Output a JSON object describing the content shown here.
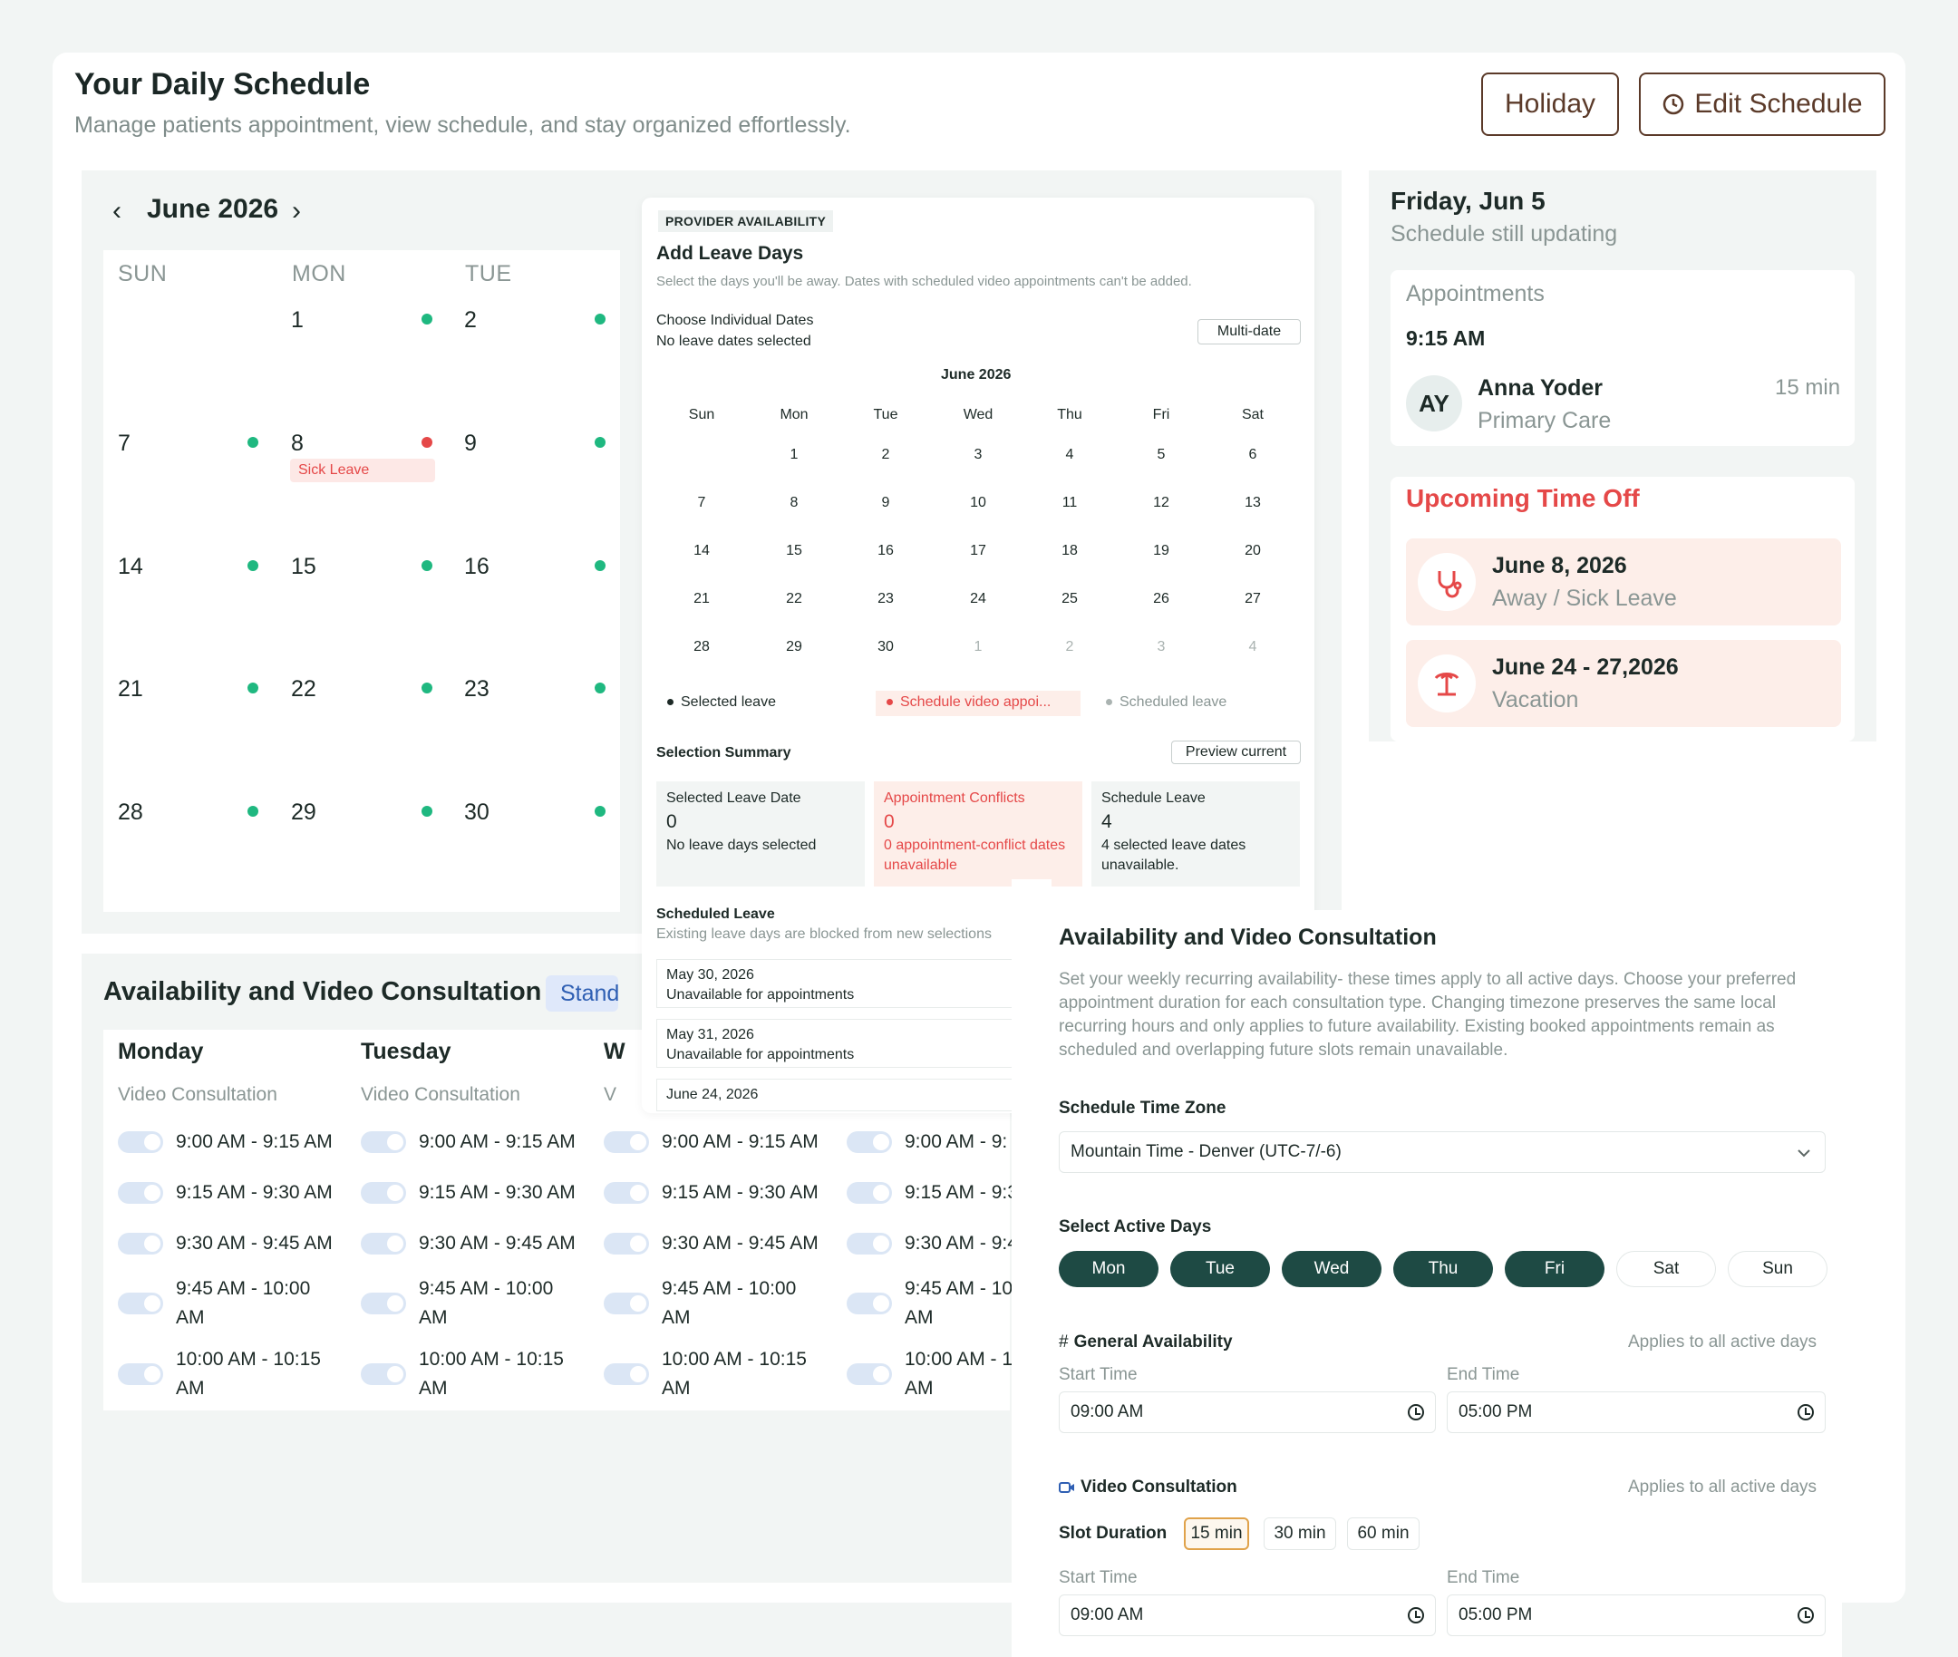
{
  "header": {
    "title": "Your Daily Schedule",
    "subtitle": "Manage patients appointment, view schedule, and stay organized effortlessly.",
    "holiday_label": "Holiday",
    "edit_label": "Edit Schedule"
  },
  "calendar": {
    "month": "June 2026",
    "weekdays": [
      "SUN",
      "MON",
      "TUE"
    ],
    "days": [
      "1",
      "2",
      "7",
      "8",
      "9",
      "14",
      "15",
      "16",
      "21",
      "22",
      "23",
      "28",
      "29",
      "30"
    ],
    "sick_leave_label": "Sick Leave"
  },
  "availability_bg": {
    "title": "Availability and Video Consultation",
    "badge": "Stand",
    "days": [
      "Monday",
      "Tuesday",
      "W"
    ],
    "type_label": "Video Consultation",
    "type_partial": "V",
    "slots": [
      "9:00 AM - 9:15 AM",
      "9:15 AM - 9:30 AM",
      "9:30 AM - 9:45 AM",
      "9:45 AM - 10:00",
      "AM",
      "10:00 AM - 10:15",
      "AM"
    ],
    "slots_partial": [
      "9:00 AM - 9:",
      "9:15 AM - 9:3",
      "9:30 AM - 9:4",
      "9:45 AM - 10:",
      "AM",
      "10:00 AM - 10",
      "AM"
    ]
  },
  "leave": {
    "tag": "PROVIDER AVAILABILITY",
    "title": "Add Leave Days",
    "desc": "Select the days you'll be away. Dates with scheduled video appointments can't be added.",
    "choose_label": "Choose Individual Dates",
    "choose_sub": "No leave dates selected",
    "multi_label": "Multi-date",
    "month": "June 2026",
    "weekdays": [
      "Sun",
      "Mon",
      "Tue",
      "Wed",
      "Thu",
      "Fri",
      "Sat"
    ],
    "weeks": [
      [
        "",
        "1",
        "2",
        "3",
        "4",
        "5",
        "6"
      ],
      [
        "7",
        "8",
        "9",
        "10",
        "11",
        "12",
        "13"
      ],
      [
        "14",
        "15",
        "16",
        "17",
        "18",
        "19",
        "20"
      ],
      [
        "21",
        "22",
        "23",
        "24",
        "25",
        "26",
        "27"
      ],
      [
        "28",
        "29",
        "30",
        "1",
        "2",
        "3",
        "4"
      ]
    ],
    "legend": [
      "Selected leave",
      "Schedule video appoi...",
      "Scheduled leave"
    ],
    "summary_label": "Selection Summary",
    "preview_label": "Preview current",
    "boxes": [
      {
        "title": "Selected Leave Date",
        "value": "0",
        "sub": "No leave days selected"
      },
      {
        "title": "Appointment Conflicts",
        "value": "0",
        "sub": "0 appointment-conflict dates unavailable"
      },
      {
        "title": "Schedule Leave",
        "value": "4",
        "sub": "4 selected leave dates unavailable."
      }
    ],
    "scheduled_title": "Scheduled Leave",
    "scheduled_desc": "Existing leave days are blocked from new selections",
    "items": [
      {
        "date": "May 30, 2026",
        "sub": "Unavailable for appointments"
      },
      {
        "date": "May 31, 2026",
        "sub": "Unavailable for appointments"
      },
      {
        "date": "June 24, 2026",
        "sub": ""
      }
    ]
  },
  "day_panel": {
    "date": "Friday, Jun 5",
    "status": "Schedule still updating",
    "appt_title": "Appointments",
    "time": "9:15 AM",
    "initials": "AY",
    "patient": "Anna Yoder",
    "dept": "Primary Care",
    "duration": "15 min",
    "timeoff_title": "Upcoming Time Off",
    "timeoff": [
      {
        "date": "June 8, 2026",
        "type": "Away / Sick Leave"
      },
      {
        "date": "June 24 - 27,2026",
        "type": "Vacation"
      }
    ]
  },
  "avail_modal": {
    "title": "Availability and Video Consultation",
    "desc": "Set your weekly recurring availability- these times apply to all active days. Choose your preferred appointment duration for each consultation type. Changing timezone preserves the same local recurring hours and only applies to future availability. Existing booked appointments remain as scheduled and overlapping future slots remain unavailable.",
    "tz_label": "Schedule Time Zone",
    "tz_value": "Mountain Time - Denver (UTC-7/-6)",
    "days_label": "Select Active Days",
    "days": [
      "Mon",
      "Tue",
      "Wed",
      "Thu",
      "Fri",
      "Sat",
      "Sun"
    ],
    "general_label": "General Availability",
    "applies": "Applies to all active days",
    "start_label": "Start Time",
    "end_label": "End Time",
    "start": "09:00 AM",
    "end": "05:00 PM",
    "video_label": "Video Consultation",
    "slot_label": "Slot Duration",
    "durations": [
      "15 min",
      "30 min",
      "60 min"
    ]
  },
  "colors": {
    "accent": "#1e4a44",
    "danger": "#e54848",
    "brand_brown": "#5b3a29",
    "green_dot": "#1fb880"
  }
}
